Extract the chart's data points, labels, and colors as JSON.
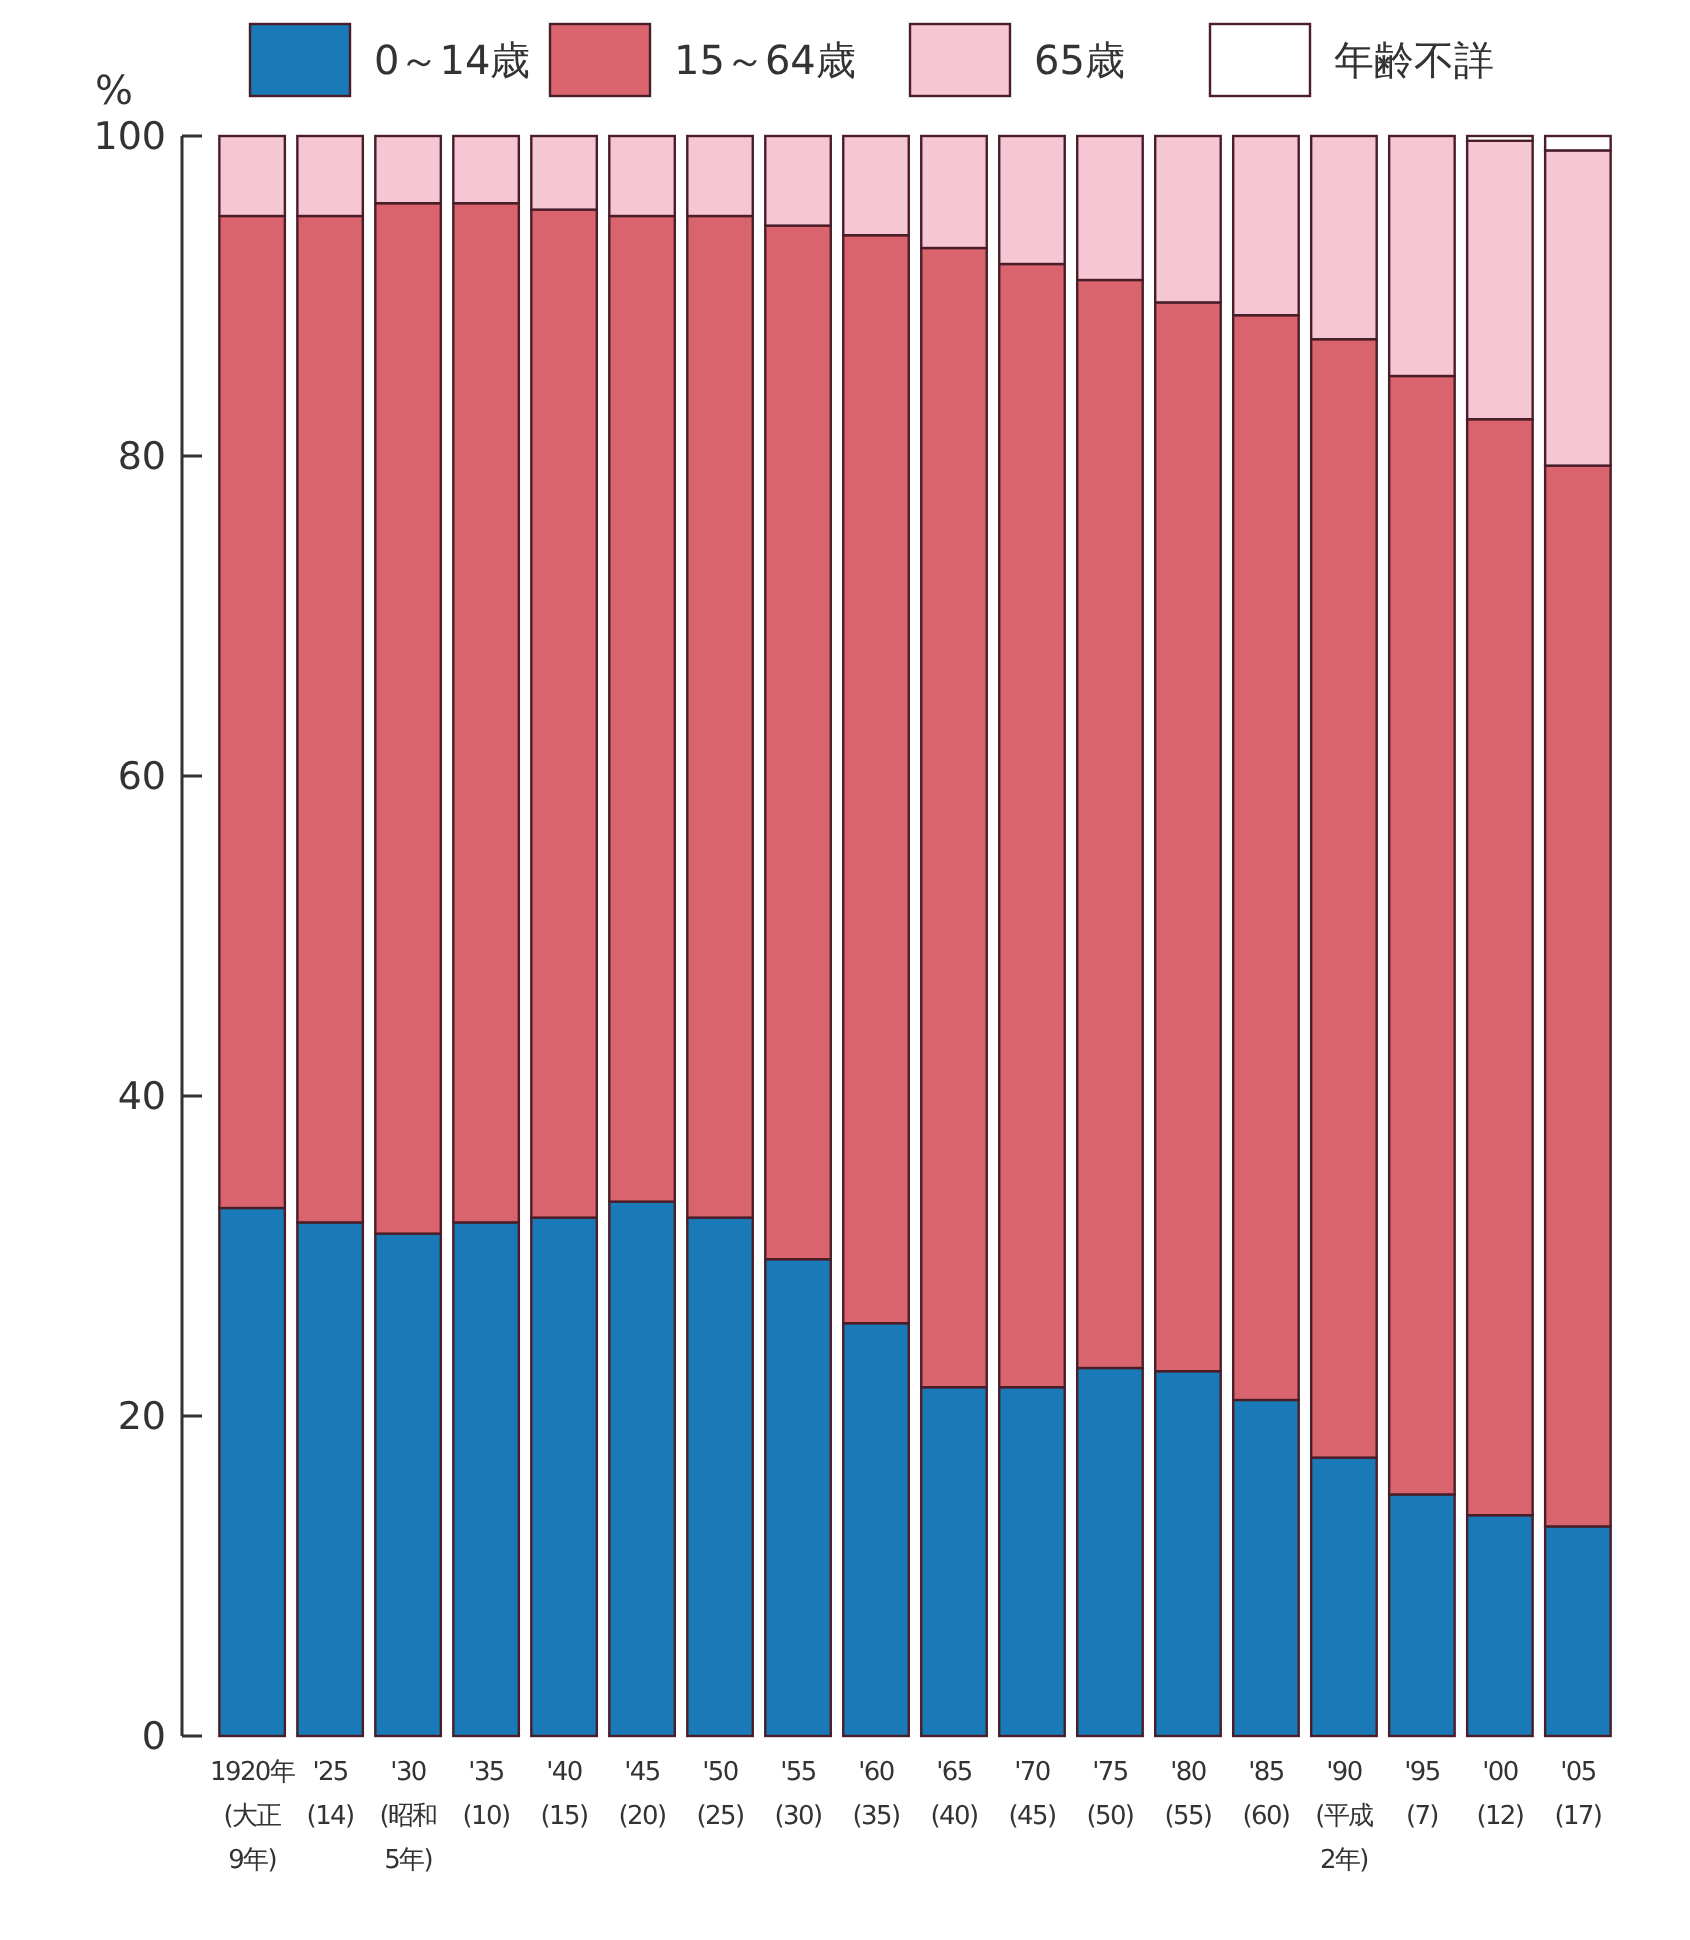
{
  "chart_data": {
    "type": "bar",
    "stacked": true,
    "ylabel": "%",
    "legend": "top",
    "grid": false,
    "categories": [
      "1920年\n(大正\n9年)",
      "'25\n(14)",
      "'30\n(昭和\n5年)",
      "'35\n(10)",
      "'40\n(15)",
      "'45\n(20)",
      "'50\n(25)",
      "'55\n(30)",
      "'60\n(35)",
      "'65\n(40)",
      "'70\n(45)",
      "'75\n(50)",
      "'80\n(55)",
      "'85\n(60)",
      "'90\n(平成\n2年)",
      "'95\n(7)",
      "'00\n(12)",
      "'05\n(17)"
    ],
    "ylim": [
      0,
      100
    ],
    "yticks": [
      0,
      20,
      40,
      60,
      80,
      100
    ],
    "series": [
      {
        "name": "0～14歳",
        "color": "#1a7ab8",
        "values": [
          33.0,
          32.1,
          31.4,
          32.1,
          32.4,
          33.4,
          32.4,
          29.8,
          25.8,
          21.8,
          21.8,
          23.0,
          22.8,
          21.0,
          17.4,
          15.1,
          13.8,
          13.1
        ]
      },
      {
        "name": "15～64歳",
        "color": "#d9646e",
        "values": [
          62.0,
          62.9,
          64.4,
          63.7,
          63.0,
          61.6,
          62.6,
          64.6,
          68.0,
          71.2,
          70.2,
          68.0,
          66.8,
          67.8,
          69.9,
          69.9,
          68.5,
          66.3
        ]
      },
      {
        "name": "65歳",
        "color": "#f5c6d3",
        "values": [
          5.0,
          5.0,
          4.2,
          4.2,
          4.6,
          5.0,
          5.0,
          5.6,
          6.2,
          7.0,
          8.0,
          9.0,
          10.4,
          11.2,
          12.7,
          15.0,
          17.4,
          19.7
        ]
      },
      {
        "name": "年齢不詳",
        "color": "#ffffff",
        "values": [
          0,
          0,
          0,
          0,
          0,
          0,
          0,
          0,
          0,
          0,
          0,
          0,
          0,
          0,
          0,
          0,
          0.3,
          0.9
        ]
      }
    ]
  }
}
